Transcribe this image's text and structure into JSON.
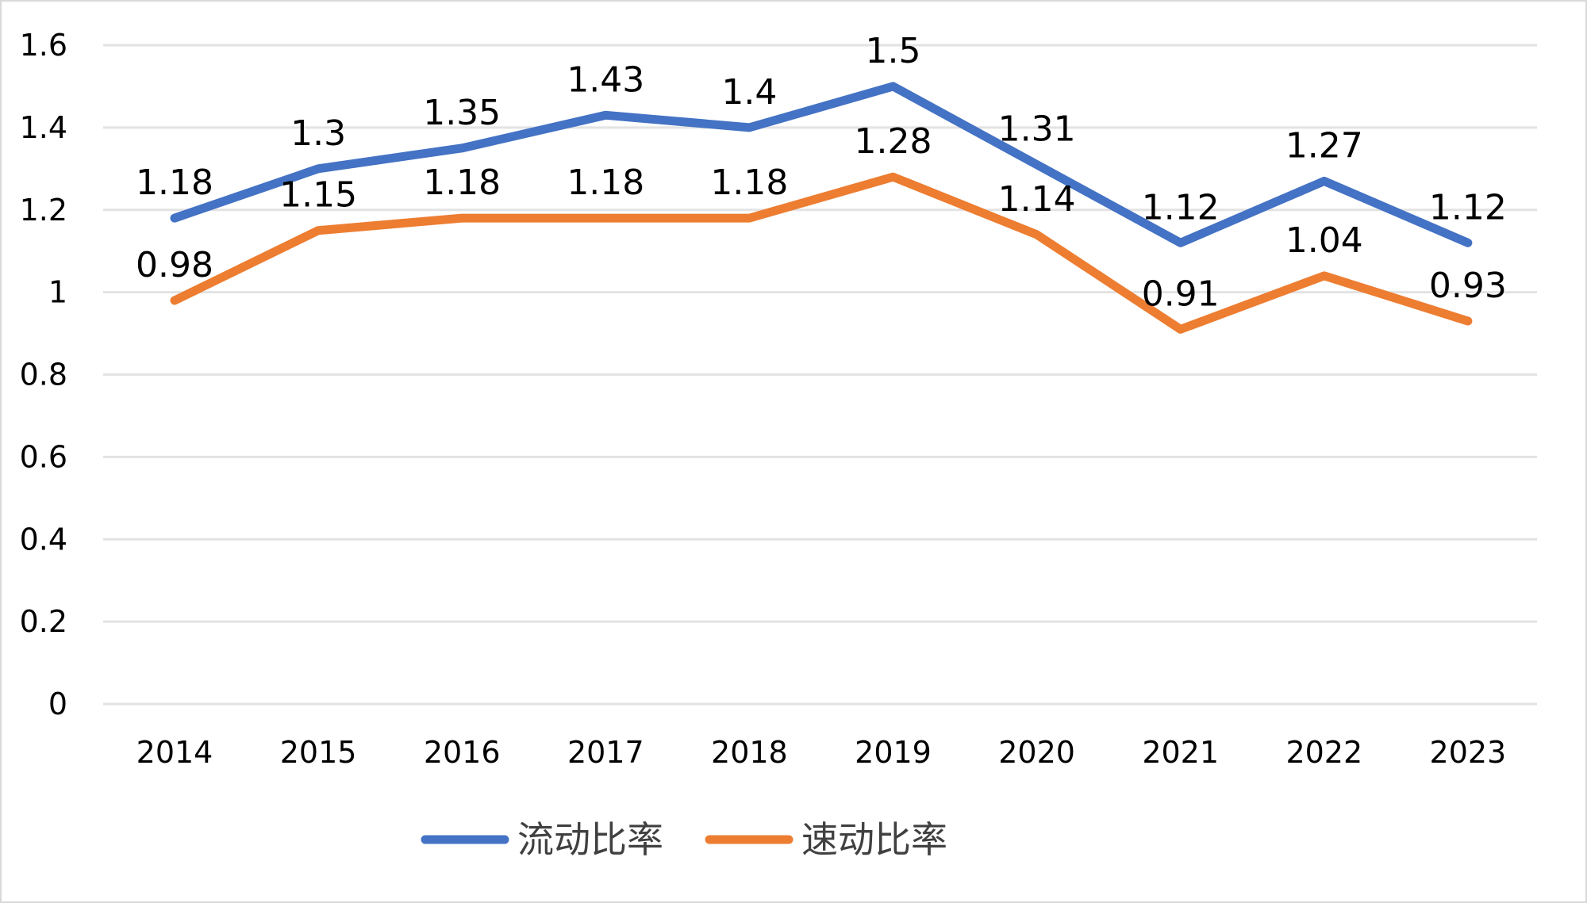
{
  "chart_data": {
    "type": "line",
    "title": "",
    "xlabel": "",
    "ylabel": "",
    "categories": [
      "2014",
      "2015",
      "2016",
      "2017",
      "2018",
      "2019",
      "2020",
      "2021",
      "2022",
      "2023"
    ],
    "ylim": [
      0,
      1.6
    ],
    "yticks": [
      0,
      0.2,
      0.4,
      0.6,
      0.8,
      1,
      1.2,
      1.4,
      1.6
    ],
    "ytick_labels": [
      "0",
      "0.2",
      "0.4",
      "0.6",
      "0.8",
      "1",
      "1.2",
      "1.4",
      "1.6"
    ],
    "grid": true,
    "legend_position": "bottom",
    "series": [
      {
        "name": "流动比率",
        "color": "#4472C4",
        "values": [
          1.18,
          1.3,
          1.35,
          1.43,
          1.4,
          1.5,
          1.31,
          1.12,
          1.27,
          1.12
        ],
        "labels": [
          "1.18",
          "1.3",
          "1.35",
          "1.43",
          "1.4",
          "1.5",
          "1.31",
          "1.12",
          "1.27",
          "1.12"
        ]
      },
      {
        "name": "速动比率",
        "color": "#ED7D31",
        "values": [
          0.98,
          1.15,
          1.18,
          1.18,
          1.18,
          1.28,
          1.14,
          0.91,
          1.04,
          0.93
        ],
        "labels": [
          "0.98",
          "1.15",
          "1.18",
          "1.18",
          "1.18",
          "1.28",
          "1.14",
          "0.91",
          "1.04",
          "0.93"
        ]
      }
    ]
  }
}
